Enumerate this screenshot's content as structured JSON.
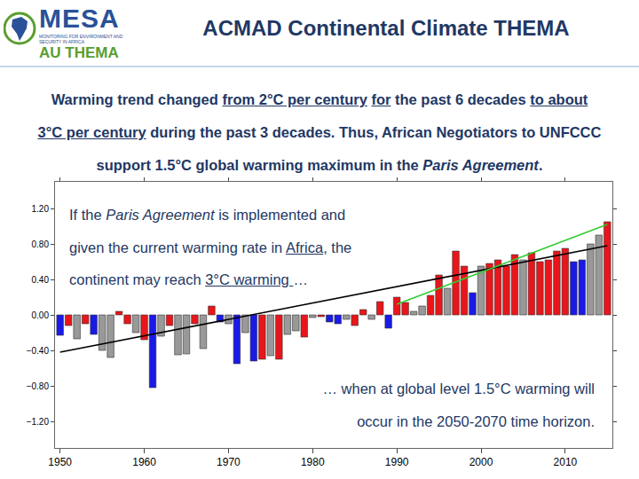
{
  "logo": {
    "name": "MESA",
    "tagline": "MONITORING FOR ENVIRONMENT AND SECURITY IN AFRICA",
    "program": "AU THEMA"
  },
  "title": "ACMAD Continental Climate THEMA",
  "summary": [
    [
      {
        "text": "Warming trend changed "
      },
      {
        "text": "from 2°C per century",
        "style": "underline"
      },
      {
        "text": " "
      },
      {
        "text": "for",
        "style": "underline"
      },
      {
        "text": " the past 6 decades "
      },
      {
        "text": "to about",
        "style": "underline"
      }
    ],
    [
      {
        "text": "3°C per century",
        "style": "underline"
      },
      {
        "text": " during the past 3 decades. Thus, African Negotiators to UNFCCC"
      }
    ],
    [
      {
        "text": "support 1.5°C global warming maximum in the "
      },
      {
        "text": "Paris Agreement",
        "style": "italic"
      },
      {
        "text": "."
      }
    ]
  ],
  "chart_data": {
    "type": "bar",
    "x": [
      1950,
      1951,
      1952,
      1953,
      1954,
      1955,
      1956,
      1957,
      1958,
      1959,
      1960,
      1961,
      1962,
      1963,
      1964,
      1965,
      1966,
      1967,
      1968,
      1969,
      1970,
      1971,
      1972,
      1973,
      1974,
      1975,
      1976,
      1977,
      1978,
      1979,
      1980,
      1981,
      1982,
      1983,
      1984,
      1985,
      1986,
      1987,
      1988,
      1989,
      1990,
      1991,
      1992,
      1993,
      1994,
      1995,
      1996,
      1997,
      1998,
      1999,
      2000,
      2001,
      2002,
      2003,
      2004,
      2005,
      2006,
      2007,
      2008,
      2009,
      2010,
      2011,
      2012,
      2013,
      2014,
      2015
    ],
    "values": [
      -0.23,
      -0.12,
      -0.27,
      -0.1,
      -0.22,
      -0.4,
      -0.48,
      0.04,
      -0.1,
      -0.2,
      -0.28,
      -0.82,
      -0.24,
      -0.12,
      -0.45,
      -0.44,
      -0.1,
      -0.38,
      0.1,
      -0.08,
      -0.1,
      -0.55,
      -0.2,
      -0.52,
      -0.5,
      -0.46,
      -0.5,
      -0.22,
      -0.18,
      -0.25,
      -0.03,
      -0.02,
      -0.08,
      -0.1,
      -0.05,
      -0.12,
      0.06,
      -0.05,
      0.15,
      -0.15,
      0.2,
      0.14,
      0.04,
      0.1,
      0.22,
      0.45,
      0.3,
      0.72,
      0.55,
      0.25,
      0.55,
      0.58,
      0.62,
      0.55,
      0.68,
      0.62,
      0.7,
      0.6,
      0.62,
      0.72,
      0.75,
      0.6,
      0.62,
      0.8,
      0.9,
      1.05
    ],
    "colors": [
      "#1a1ae6",
      "#e8161b",
      "#999999",
      "#e8161b",
      "#1a1ae6",
      "#999999",
      "#999999",
      "#e8161b",
      "#e8161b",
      "#999999",
      "#e8161b",
      "#1a1ae6",
      "#999999",
      "#e8161b",
      "#999999",
      "#999999",
      "#e8161b",
      "#999999",
      "#e8161b",
      "#1a1ae6",
      "#999999",
      "#1a1ae6",
      "#999999",
      "#1a1ae6",
      "#e8161b",
      "#999999",
      "#e8161b",
      "#999999",
      "#999999",
      "#e8161b",
      "#999999",
      "#e8161b",
      "#1a1ae6",
      "#1a1ae6",
      "#999999",
      "#e8161b",
      "#e8161b",
      "#999999",
      "#e8161b",
      "#1a1ae6",
      "#e8161b",
      "#e8161b",
      "#999999",
      "#999999",
      "#e8161b",
      "#e8161b",
      "#999999",
      "#e8161b",
      "#e8161b",
      "#1a1ae6",
      "#999999",
      "#e8161b",
      "#e8161b",
      "#e8161b",
      "#e8161b",
      "#999999",
      "#e8161b",
      "#e8161b",
      "#e8161b",
      "#e8161b",
      "#e8161b",
      "#1a1ae6",
      "#1a1ae6",
      "#999999",
      "#999999",
      "#e8161b"
    ],
    "xlim": [
      1949.4,
      2015.6
    ],
    "xticks": [
      1950,
      1960,
      1970,
      1980,
      1990,
      2000,
      2010
    ],
    "ylim": [
      -1.5,
      1.5
    ],
    "yticks": [
      {
        "value": -1.2,
        "label": "−1.20"
      },
      {
        "value": -0.8,
        "label": "−0.80"
      },
      {
        "value": -0.4,
        "label": "−0.40"
      },
      {
        "value": 0,
        "label": "0.00"
      },
      {
        "value": 0.4,
        "label": "0.40"
      },
      {
        "value": 0.8,
        "label": "0.80"
      },
      {
        "value": 1.2,
        "label": "1.20"
      }
    ],
    "grid": false,
    "lines": [
      {
        "x": [
          1950,
          2015
        ],
        "values": [
          -0.42,
          0.78
        ],
        "color": "#000000"
      },
      {
        "x": [
          1990,
          2015
        ],
        "values": [
          0.12,
          1.02
        ],
        "color": "#33cc33"
      }
    ],
    "annotations": [
      {
        "lines": [
          [
            {
              "text": "If the "
            },
            {
              "text": "Paris Agreement",
              "style": "italic"
            },
            {
              "text": " is implemented and"
            }
          ],
          [
            {
              "text": "given the current warming rate in "
            },
            {
              "text": "Africa",
              "style": "underline"
            },
            {
              "text": ", the"
            }
          ],
          [
            {
              "text": "continent may reach "
            },
            {
              "text": "3°C warming ",
              "style": "underline"
            },
            {
              "text": "…"
            }
          ]
        ]
      },
      {
        "lines": [
          [
            {
              "text": "… when at global level 1.5°C warming will"
            }
          ],
          [
            {
              "text": "occur in the 2050-2070 time horizon."
            }
          ]
        ]
      }
    ]
  }
}
